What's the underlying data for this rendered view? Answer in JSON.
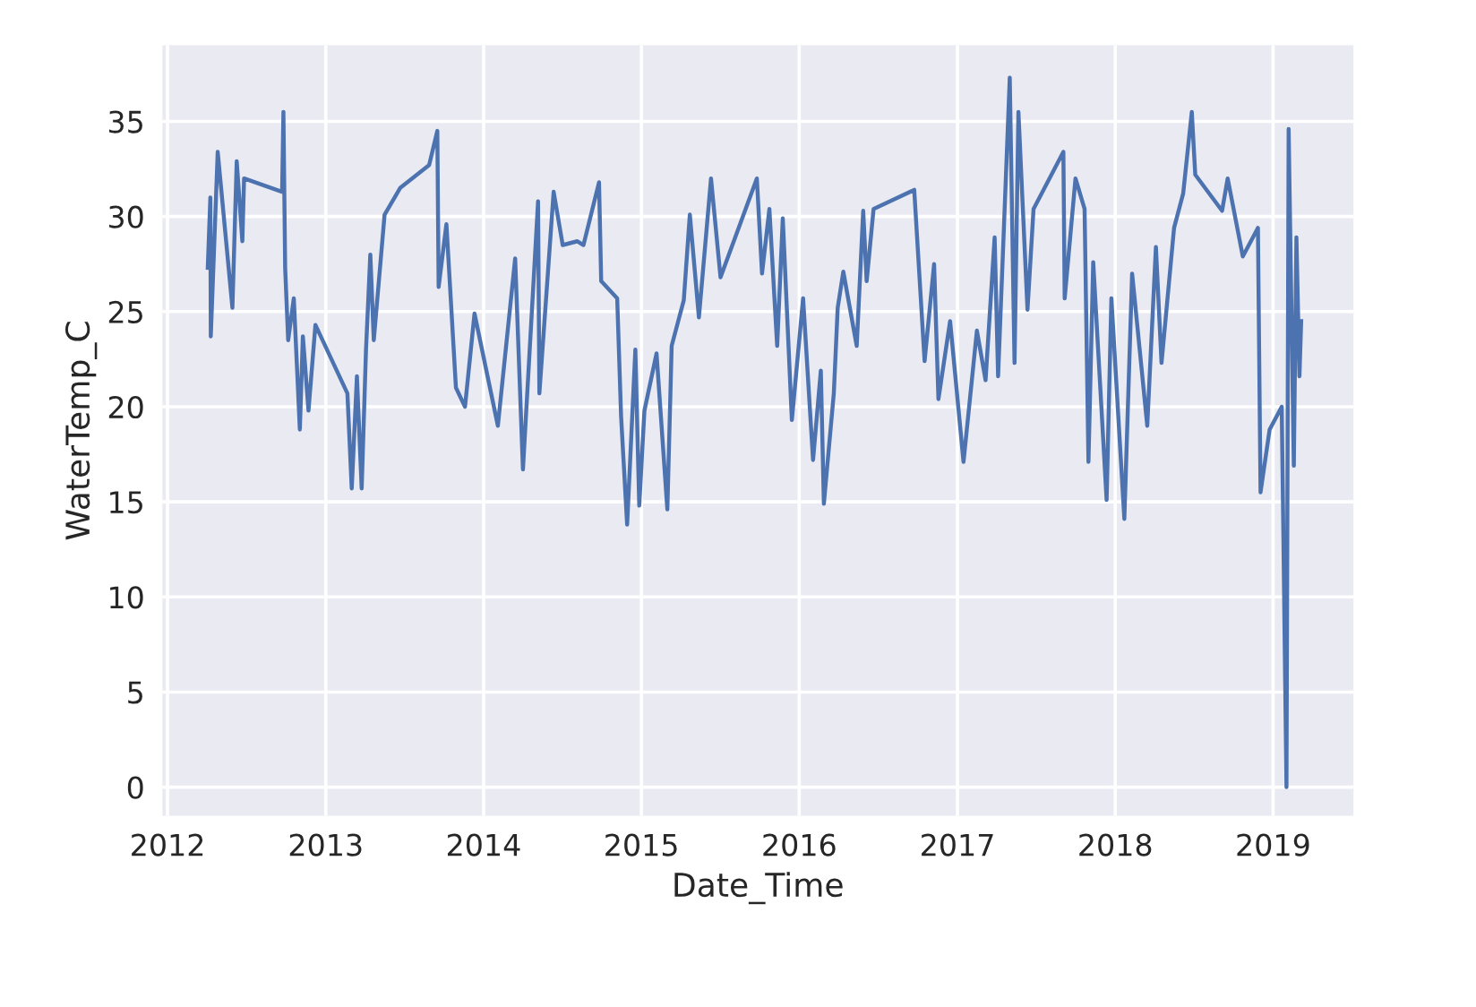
{
  "chart_data": {
    "type": "line",
    "xlabel": "Date_Time",
    "ylabel": "WaterTemp_C",
    "xlim": [
      "2011-12-20",
      "2019-07-06"
    ],
    "ylim": [
      -1.5,
      39
    ],
    "xticks": [
      {
        "value": "2012",
        "label": "2012"
      },
      {
        "value": "2013",
        "label": "2013"
      },
      {
        "value": "2014",
        "label": "2014"
      },
      {
        "value": "2015",
        "label": "2015"
      },
      {
        "value": "2016",
        "label": "2016"
      },
      {
        "value": "2017",
        "label": "2017"
      },
      {
        "value": "2018",
        "label": "2018"
      },
      {
        "value": "2019",
        "label": "2019"
      }
    ],
    "yticks": [
      0,
      5,
      10,
      15,
      20,
      25,
      30,
      35
    ],
    "grid": true,
    "marker": "none",
    "line_style": "solid",
    "x": [
      "2012-04-03",
      "2012-04-09",
      "2012-04-10",
      "2012-04-26",
      "2012-05-30",
      "2012-06-09",
      "2012-06-22",
      "2012-06-26",
      "2012-09-22",
      "2012-09-25",
      "2012-09-29",
      "2012-10-06",
      "2012-10-19",
      "2012-11-02",
      "2012-11-09",
      "2012-11-22",
      "2012-12-08",
      "2013-02-20",
      "2013-03-02",
      "2013-03-14",
      "2013-03-25",
      "2013-04-04",
      "2013-04-14",
      "2013-04-22",
      "2013-05-17",
      "2013-06-22",
      "2013-08-28",
      "2013-09-16",
      "2013-09-19",
      "2013-10-07",
      "2013-10-29",
      "2013-11-19",
      "2013-12-11",
      "2014-02-03",
      "2014-03-15",
      "2014-04-02",
      "2014-05-07",
      "2014-05-10",
      "2014-06-12",
      "2014-07-03",
      "2014-08-06",
      "2014-08-20",
      "2014-09-25",
      "2014-09-30",
      "2014-11-06",
      "2014-11-15",
      "2014-11-29",
      "2014-12-18",
      "2014-12-27",
      "2015-01-08",
      "2015-02-05",
      "2015-03-02",
      "2015-03-12",
      "2015-04-09",
      "2015-04-23",
      "2015-05-14",
      "2015-06-11",
      "2015-07-03",
      "2015-09-25",
      "2015-10-07",
      "2015-10-24",
      "2015-11-11",
      "2015-11-24",
      "2015-12-15",
      "2016-01-10",
      "2016-02-02",
      "2016-02-20",
      "2016-02-27",
      "2016-03-21",
      "2016-03-30",
      "2016-04-12",
      "2016-05-13",
      "2016-05-28",
      "2016-06-05",
      "2016-06-21",
      "2016-09-23",
      "2016-10-17",
      "2016-11-08",
      "2016-11-18",
      "2016-12-15",
      "2017-01-15",
      "2017-02-15",
      "2017-03-07",
      "2017-03-28",
      "2017-04-05",
      "2017-05-02",
      "2017-05-13",
      "2017-05-22",
      "2017-06-12",
      "2017-06-26",
      "2017-09-03",
      "2017-09-06",
      "2017-10-01",
      "2017-10-22",
      "2017-10-31",
      "2017-11-11",
      "2017-12-12",
      "2017-12-23",
      "2018-01-22",
      "2018-02-09",
      "2018-03-16",
      "2018-04-05",
      "2018-04-18",
      "2018-05-17",
      "2018-06-07",
      "2018-06-27",
      "2018-07-05",
      "2018-09-05",
      "2018-09-18",
      "2018-10-23",
      "2018-11-27",
      "2018-12-03",
      "2018-12-24",
      "2019-01-21",
      "2019-01-25",
      "2019-02-01",
      "2019-02-06",
      "2019-02-18",
      "2019-02-24",
      "2019-03-03",
      "2019-03-07"
    ],
    "series": [
      {
        "color": "#4c72b0",
        "values": [
          27.3,
          31.0,
          23.7,
          33.4,
          25.2,
          32.9,
          28.7,
          32.0,
          31.3,
          35.5,
          27.3,
          23.5,
          25.7,
          18.8,
          23.7,
          19.8,
          24.3,
          20.7,
          15.7,
          21.6,
          15.7,
          23.0,
          28.0,
          23.5,
          30.1,
          31.5,
          32.7,
          34.5,
          26.3,
          29.6,
          21.0,
          20.0,
          24.9,
          19.0,
          27.8,
          16.7,
          30.8,
          20.7,
          31.3,
          28.5,
          28.7,
          28.5,
          31.8,
          26.6,
          25.7,
          19.5,
          13.8,
          23.0,
          14.8,
          19.8,
          22.8,
          14.6,
          23.2,
          25.6,
          30.1,
          24.7,
          32.0,
          26.8,
          32.0,
          27.0,
          30.4,
          23.2,
          29.9,
          19.3,
          25.7,
          17.2,
          21.9,
          14.9,
          20.7,
          25.2,
          27.1,
          23.2,
          30.3,
          26.6,
          30.4,
          31.4,
          22.4,
          27.5,
          20.4,
          24.5,
          17.1,
          24.0,
          21.4,
          28.9,
          21.6,
          37.3,
          22.3,
          35.5,
          25.1,
          30.4,
          33.4,
          25.7,
          32.0,
          30.4,
          17.1,
          27.6,
          15.1,
          25.7,
          14.1,
          27.0,
          19.0,
          28.4,
          22.3,
          29.4,
          31.2,
          35.5,
          32.2,
          30.3,
          32.0,
          27.9,
          29.4,
          15.5,
          18.8,
          20.0,
          12.9,
          0,
          34.6,
          16.9,
          28.9,
          21.6,
          24.5
        ]
      }
    ]
  }
}
